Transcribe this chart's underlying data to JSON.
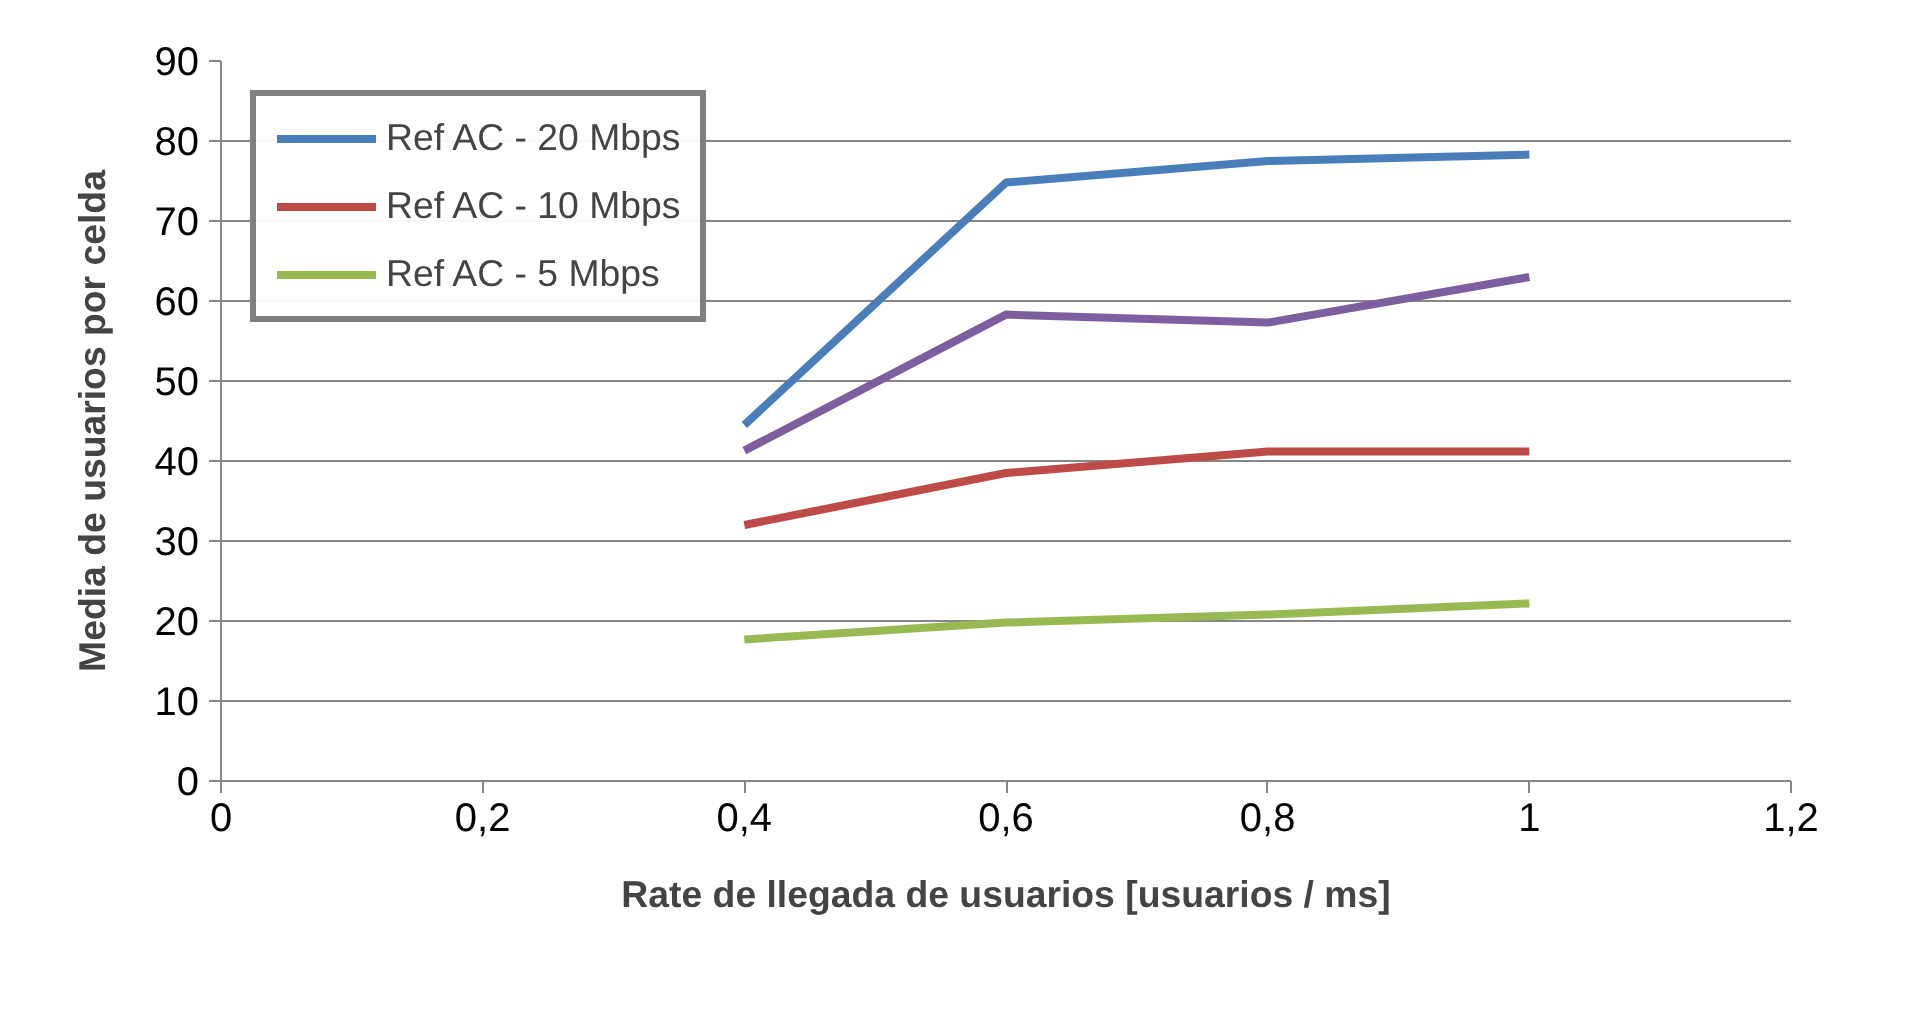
{
  "chart_data": {
    "type": "line",
    "xlabel": "Rate de llegada de usuarios [usuarios / ms]",
    "ylabel": "Media de usuarios por celda",
    "x": [
      0.4,
      0.6,
      0.8,
      1
    ],
    "series": [
      {
        "name": "Ref AC - 20 Mbps",
        "color": "#4a7ebb",
        "values": [
          44.5,
          74.8,
          77.5,
          78.3
        ]
      },
      {
        "color": "#7d5fa0",
        "values": [
          41.3,
          58.3,
          57.3,
          63
        ]
      },
      {
        "name": "Ref AC - 10 Mbps",
        "color": "#be4b48",
        "values": [
          32,
          38.5,
          41.2,
          41.2
        ]
      },
      {
        "name": "Ref AC - 5 Mbps",
        "color": "#98b954",
        "values": [
          17.7,
          19.8,
          20.8,
          22.2
        ]
      }
    ],
    "xlim": [
      0,
      1.2
    ],
    "xticks": [
      0,
      {
        "value": 0.2,
        "label": "0,2"
      },
      {
        "value": 0.4,
        "label": "0,4"
      },
      {
        "value": 0.6,
        "label": "0,6"
      },
      {
        "value": 0.8,
        "label": "0,8"
      },
      1,
      {
        "value": 1.2,
        "label": "1,2"
      }
    ],
    "ylim": [
      0,
      90
    ],
    "yticks": [
      0,
      10,
      20,
      30,
      40,
      50,
      60,
      70,
      80,
      90
    ],
    "grid": "y",
    "legend": "top left",
    "marker": "none",
    "line_style": "solid"
  }
}
